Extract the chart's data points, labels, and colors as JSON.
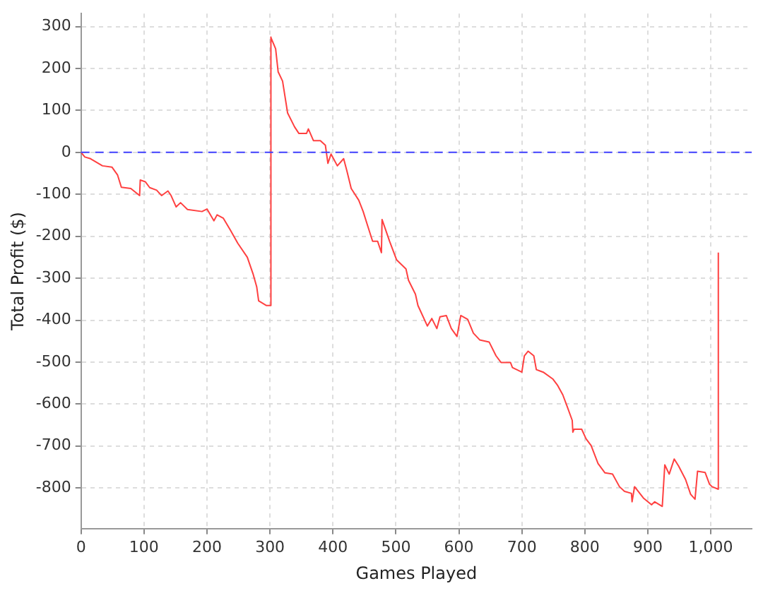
{
  "chart_data": {
    "type": "line",
    "xlabel": "Games Played",
    "ylabel": "Total Profit ($)",
    "xlim": [
      0,
      1065
    ],
    "ylim": [
      -897,
      331
    ],
    "xticks": [
      0,
      100,
      200,
      300,
      400,
      500,
      600,
      700,
      800,
      900,
      {
        "value": 1000,
        "label": "1,000"
      }
    ],
    "yticks": [
      -800,
      -700,
      -600,
      -500,
      -400,
      -300,
      -200,
      -100,
      0,
      100,
      200,
      300
    ],
    "grid": true,
    "legend": false,
    "marker": "none",
    "line_style": "solid",
    "ref_lines": [
      {
        "axis": "y",
        "value": 0,
        "color": "#4040ff",
        "line_style": "dashed"
      }
    ],
    "series": [
      {
        "color": "#ff4040",
        "x": [
          0,
          6,
          15,
          34,
          49,
          58,
          64,
          79,
          93,
          94,
          102,
          109,
          120,
          128,
          138,
          143,
          151,
          158,
          169,
          192,
          200,
          211,
          216,
          226,
          237,
          249,
          264,
          273,
          279,
          282,
          294,
          301,
          301,
          302,
          309,
          313,
          320,
          328,
          339,
          346,
          358,
          361,
          369,
          380,
          388,
          392,
          397,
          407,
          417,
          422,
          429,
          441,
          448,
          456,
          463,
          471,
          477,
          478,
          490,
          501,
          516,
          520,
          531,
          535,
          550,
          557,
          565,
          570,
          580,
          588,
          597,
          603,
          614,
          623,
          633,
          648,
          659,
          667,
          682,
          685,
          700,
          704,
          710,
          719,
          723,
          734,
          749,
          757,
          765,
          772,
          780,
          781,
          783,
          795,
          802,
          810,
          821,
          832,
          844,
          855,
          863,
          874,
          875,
          879,
          893,
          906,
          911,
          923,
          927,
          934,
          942,
          949,
          960,
          968,
          975,
          979,
          991,
          998,
          1002,
          1012,
          1012
        ],
        "values": [
          0,
          -11,
          -15,
          -32,
          -35,
          -54,
          -83,
          -86,
          -103,
          -66,
          -70,
          -84,
          -90,
          -103,
          -92,
          -103,
          -130,
          -120,
          -136,
          -141,
          -135,
          -163,
          -149,
          -157,
          -185,
          -217,
          -250,
          -289,
          -321,
          -354,
          -365,
          -365,
          275,
          274,
          247,
          192,
          170,
          94,
          61,
          45,
          45,
          56,
          28,
          28,
          17,
          -26,
          -4,
          -32,
          -15,
          -43,
          -86,
          -114,
          -141,
          -179,
          -212,
          -212,
          -239,
          -160,
          -212,
          -256,
          -278,
          -305,
          -338,
          -365,
          -414,
          -396,
          -420,
          -392,
          -389,
          -420,
          -439,
          -389,
          -398,
          -431,
          -447,
          -452,
          -485,
          -501,
          -501,
          -513,
          -524,
          -485,
          -474,
          -485,
          -518,
          -524,
          -540,
          -556,
          -578,
          -606,
          -639,
          -667,
          -660,
          -660,
          -683,
          -699,
          -742,
          -764,
          -767,
          -797,
          -808,
          -813,
          -833,
          -797,
          -824,
          -840,
          -833,
          -844,
          -745,
          -767,
          -731,
          -748,
          -780,
          -815,
          -827,
          -760,
          -763,
          -791,
          -797,
          -803,
          -239
        ]
      }
    ]
  }
}
